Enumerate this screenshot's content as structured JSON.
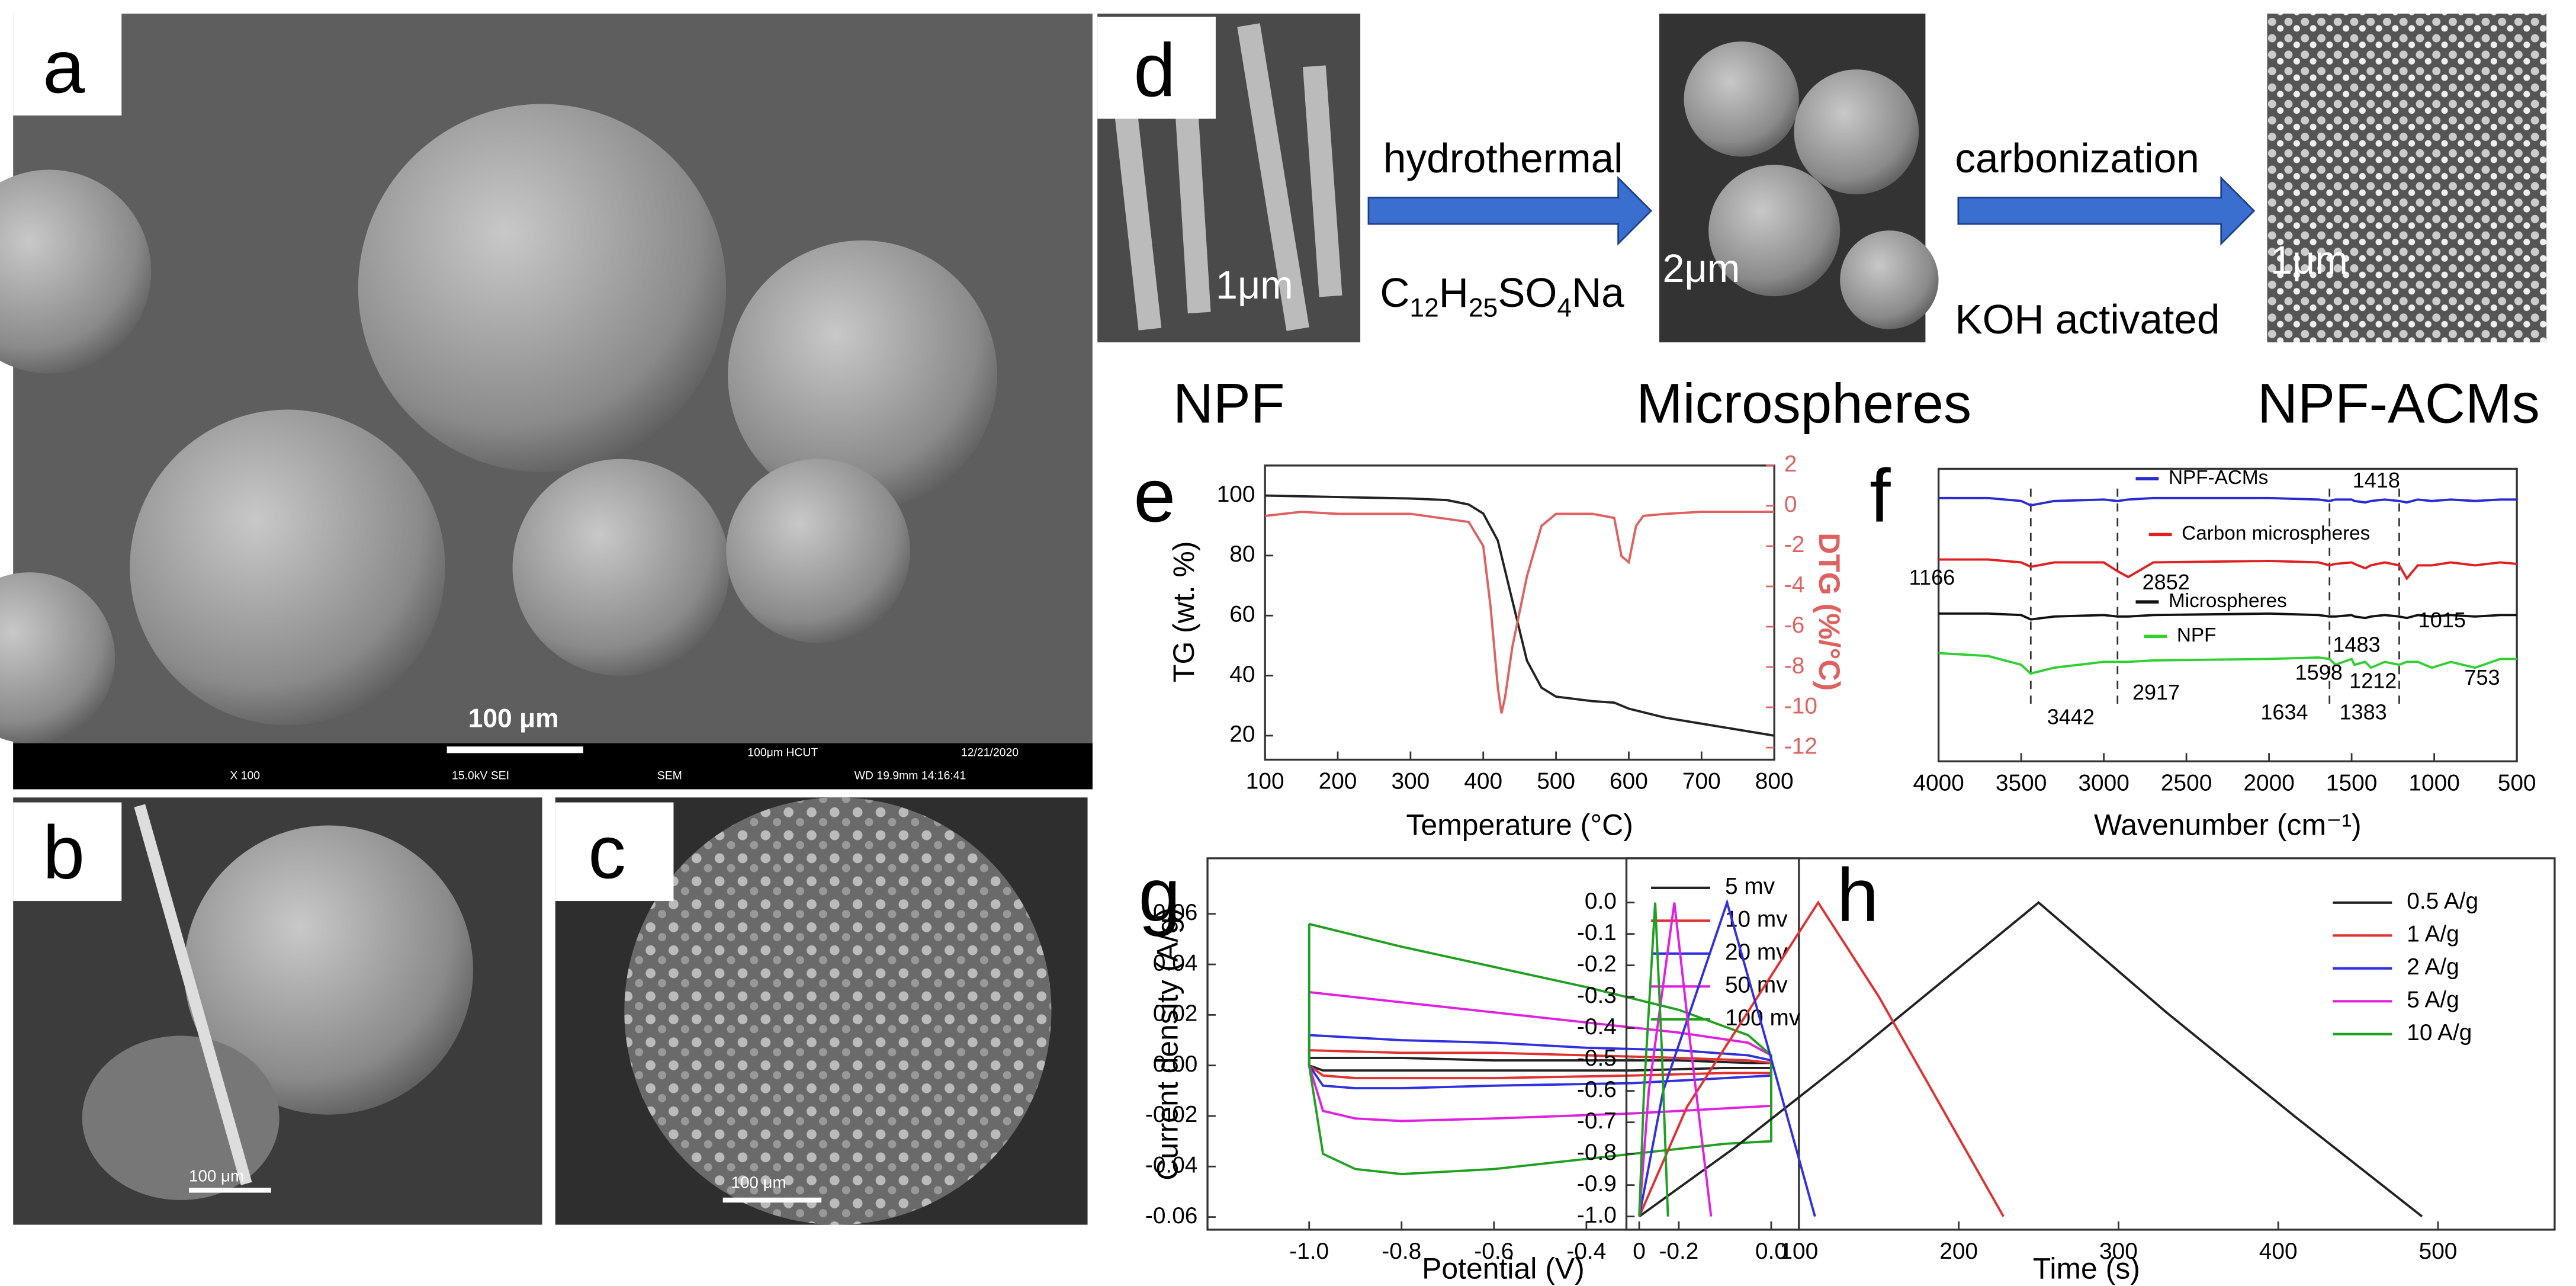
{
  "panels": {
    "labels": [
      "a",
      "b",
      "c",
      "d",
      "e",
      "f",
      "g",
      "h"
    ],
    "a": {
      "scale": "100 μm",
      "info": [
        "100μm HCUT",
        "12/21/2020",
        "X 100",
        "15.0kV SEI",
        "SEM",
        "WD 19.9mm 14:16:41"
      ]
    },
    "b": {
      "scale": "100 μm"
    },
    "c": {
      "scale": "100 μm"
    },
    "d": {
      "step1": "hydrothermal",
      "reagent": [
        "C",
        "12",
        "H",
        "25",
        "SO",
        "4",
        "Na"
      ],
      "step2": "carbonization",
      "step2b": "KOH activated",
      "stages": [
        "NPF",
        "Microspheres",
        "NPF-ACMs"
      ],
      "scales": [
        "1μm",
        "2μm",
        "1μm"
      ]
    }
  },
  "chart_data": [
    {
      "type": "line",
      "xlabel": "Temperature (°C)",
      "ylabel": "TG (wt. %)",
      "y2label": "DTG (%/°C)",
      "xlim": [
        100,
        800
      ],
      "xticks": [
        100,
        200,
        300,
        400,
        500,
        600,
        700,
        800
      ],
      "ylim": [
        12,
        110
      ],
      "yticks": [
        20,
        40,
        60,
        80,
        100
      ],
      "y2lim": [
        -12.6,
        2
      ],
      "y2ticks": [
        2,
        0,
        -2,
        -4,
        -6,
        -8,
        -10,
        -12
      ],
      "grid": false,
      "series": [
        {
          "name": "TG",
          "color": "#222222",
          "x": [
            100,
            200,
            300,
            350,
            380,
            400,
            420,
            440,
            460,
            480,
            500,
            550,
            580,
            600,
            650,
            700,
            750,
            800
          ],
          "values": [
            100,
            99.5,
            99,
            98.5,
            97,
            94,
            85,
            65,
            45,
            36,
            33,
            31.5,
            31,
            29,
            26,
            24,
            22,
            20
          ]
        },
        {
          "name": "DTG",
          "color": "#e06060",
          "axis": "y2",
          "x": [
            100,
            150,
            200,
            300,
            380,
            400,
            410,
            420,
            425,
            430,
            440,
            460,
            480,
            500,
            550,
            580,
            590,
            600,
            610,
            620,
            650,
            700,
            800
          ],
          "values": [
            -0.5,
            -0.3,
            -0.4,
            -0.4,
            -0.8,
            -2,
            -5,
            -9,
            -10.3,
            -9.5,
            -7,
            -3.5,
            -1,
            -0.4,
            -0.4,
            -0.6,
            -2.5,
            -2.8,
            -1,
            -0.5,
            -0.4,
            -0.3,
            -0.3
          ]
        }
      ]
    },
    {
      "type": "line",
      "xlabel": "Wavenumber (cm⁻¹)",
      "xlim": [
        4000,
        500
      ],
      "xticks": [
        4000,
        3500,
        3000,
        2500,
        2000,
        1500,
        1000,
        500
      ],
      "ylim": [
        0,
        100
      ],
      "grid": false,
      "legend": "inline",
      "x": [
        4000,
        3700,
        3500,
        3442,
        3300,
        3000,
        2917,
        2852,
        2700,
        2000,
        1700,
        1634,
        1598,
        1500,
        1483,
        1418,
        1383,
        1300,
        1212,
        1166,
        1100,
        1015,
        900,
        753,
        600,
        500
      ],
      "series": [
        {
          "name": "NPF-ACMs",
          "color": "#2a2ad0",
          "values": [
            90,
            90,
            89,
            87.5,
            89,
            89.5,
            89,
            89.5,
            90,
            90,
            89.5,
            89,
            89.5,
            89.5,
            89,
            88.5,
            89,
            89.5,
            89,
            88.5,
            89.5,
            89,
            89.5,
            89,
            89.5,
            89.5
          ]
        },
        {
          "name": "Carbon microspheres",
          "color": "#e02020",
          "values": [
            69,
            69,
            68,
            66.5,
            68,
            68,
            65,
            63,
            68,
            68.5,
            68,
            67,
            67.5,
            68,
            67.5,
            66,
            67,
            68,
            67,
            62.5,
            67,
            67,
            68,
            67,
            68,
            67.5
          ]
        },
        {
          "name": "Microspheres",
          "color": "#111111",
          "values": [
            50.5,
            50.5,
            50,
            48.5,
            49.5,
            50,
            49.5,
            49.5,
            50,
            50.5,
            50,
            49.5,
            49.5,
            50,
            49.5,
            49,
            49.5,
            50,
            49.5,
            49,
            50,
            49.5,
            50,
            49.5,
            50,
            50
          ]
        },
        {
          "name": "NPF",
          "color": "#30d030",
          "values": [
            37,
            36,
            33,
            30,
            32,
            34,
            34,
            34,
            34.5,
            35,
            35.5,
            35,
            33,
            35,
            33,
            34,
            32,
            34,
            33,
            34,
            34,
            32,
            34,
            32,
            35,
            35
          ]
        }
      ],
      "guides": [
        3442,
        2917,
        1634,
        1212
      ],
      "annotations": [
        "1418",
        "2852",
        "1166",
        "1483",
        "1015",
        "1598",
        "1212",
        "753",
        "3442",
        "2917",
        "1634",
        "1383"
      ]
    },
    {
      "type": "line",
      "xlabel": "Potential (V)",
      "ylabel": "Current density (A/g)",
      "xlim": [
        -1.22,
        0.06
      ],
      "xticks": [
        {
          "value": -1,
          "label": "-1.0"
        },
        -0.8,
        -0.6,
        -0.4,
        -0.2,
        {
          "value": 0,
          "label": "0.0"
        }
      ],
      "ylim": [
        -0.065,
        0.082
      ],
      "yticks": [
        0.06,
        0.04,
        0.02,
        {
          "value": 0,
          "label": "0.00"
        },
        -0.02,
        -0.04,
        -0.06
      ],
      "grid": false,
      "legend": "upper right",
      "x": [
        -1,
        -0.8,
        -0.6,
        -0.4,
        -0.2,
        -0.05,
        0,
        0,
        -0.1,
        -0.3,
        -0.6,
        -0.8,
        -0.9,
        -0.97,
        -1,
        -1
      ],
      "series": [
        {
          "name": "5 mv",
          "color": "#222222",
          "values": [
            0.003,
            0.003,
            0.002,
            0.002,
            0.002,
            0.001,
            0.001,
            -0.001,
            -0.001,
            -0.002,
            -0.002,
            -0.002,
            -0.002,
            -0.002,
            0,
            0.003
          ]
        },
        {
          "name": "10 mv",
          "color": "#e03030",
          "values": [
            0.006,
            0.005,
            0.005,
            0.004,
            0.003,
            0.002,
            0.001,
            -0.003,
            -0.003,
            -0.004,
            -0.005,
            -0.005,
            -0.005,
            -0.004,
            0,
            0.006
          ]
        },
        {
          "name": "20 mv",
          "color": "#3030e0",
          "values": [
            0.012,
            0.01,
            0.009,
            0.007,
            0.006,
            0.004,
            0.002,
            -0.004,
            -0.005,
            -0.007,
            -0.008,
            -0.009,
            -0.009,
            -0.008,
            0,
            0.012
          ]
        },
        {
          "name": "50 mv",
          "color": "#e020e0",
          "values": [
            0.029,
            0.025,
            0.021,
            0.017,
            0.013,
            0.009,
            0.004,
            -0.016,
            -0.017,
            -0.019,
            -0.021,
            -0.022,
            -0.021,
            -0.018,
            0,
            0.029
          ]
        },
        {
          "name": "100 mv",
          "color": "#20a020",
          "values": [
            0.056,
            0.047,
            0.039,
            0.031,
            0.022,
            0.012,
            0.004,
            -0.03,
            -0.031,
            -0.035,
            -0.041,
            -0.043,
            -0.041,
            -0.035,
            0,
            0.056
          ]
        }
      ]
    },
    {
      "type": "line",
      "xlabel": "Time (s)",
      "xlim": [
        -8,
        573
      ],
      "xticks": [
        0,
        100,
        200,
        300,
        400,
        500
      ],
      "ylim": [
        -1.042,
        0.141
      ],
      "yticks": [
        {
          "value": 0,
          "label": "0.0"
        },
        -0.1,
        -0.2,
        -0.3,
        -0.4,
        -0.5,
        -0.6,
        -0.7,
        -0.8,
        -0.9,
        {
          "value": -1,
          "label": "-1.0"
        }
      ],
      "grid": false,
      "legend": "upper right",
      "series": [
        {
          "name": "0.5 A/g",
          "color": "#222222",
          "x": [
            0,
            60,
            130,
            250,
            330,
            410,
            490
          ],
          "values": [
            -1,
            -0.78,
            -0.5,
            0,
            -0.35,
            -0.68,
            -1
          ]
        },
        {
          "name": "1 A/g",
          "color": "#e03030",
          "x": [
            0,
            30,
            112,
            150,
            228
          ],
          "values": [
            -1,
            -0.65,
            0,
            -0.3,
            -1
          ]
        },
        {
          "name": "2 A/g",
          "color": "#3030e0",
          "x": [
            0,
            15,
            55,
            80,
            110
          ],
          "values": [
            -1,
            -0.6,
            0,
            -0.45,
            -1
          ]
        },
        {
          "name": "5 A/g",
          "color": "#e020e0",
          "x": [
            0,
            6,
            22,
            32,
            45
          ],
          "values": [
            -1,
            -0.6,
            0,
            -0.45,
            -1
          ]
        },
        {
          "name": "10 A/g",
          "color": "#20a020",
          "x": [
            0,
            3,
            10,
            14,
            18
          ],
          "values": [
            -1,
            -0.6,
            0,
            -0.45,
            -1
          ]
        }
      ]
    }
  ]
}
